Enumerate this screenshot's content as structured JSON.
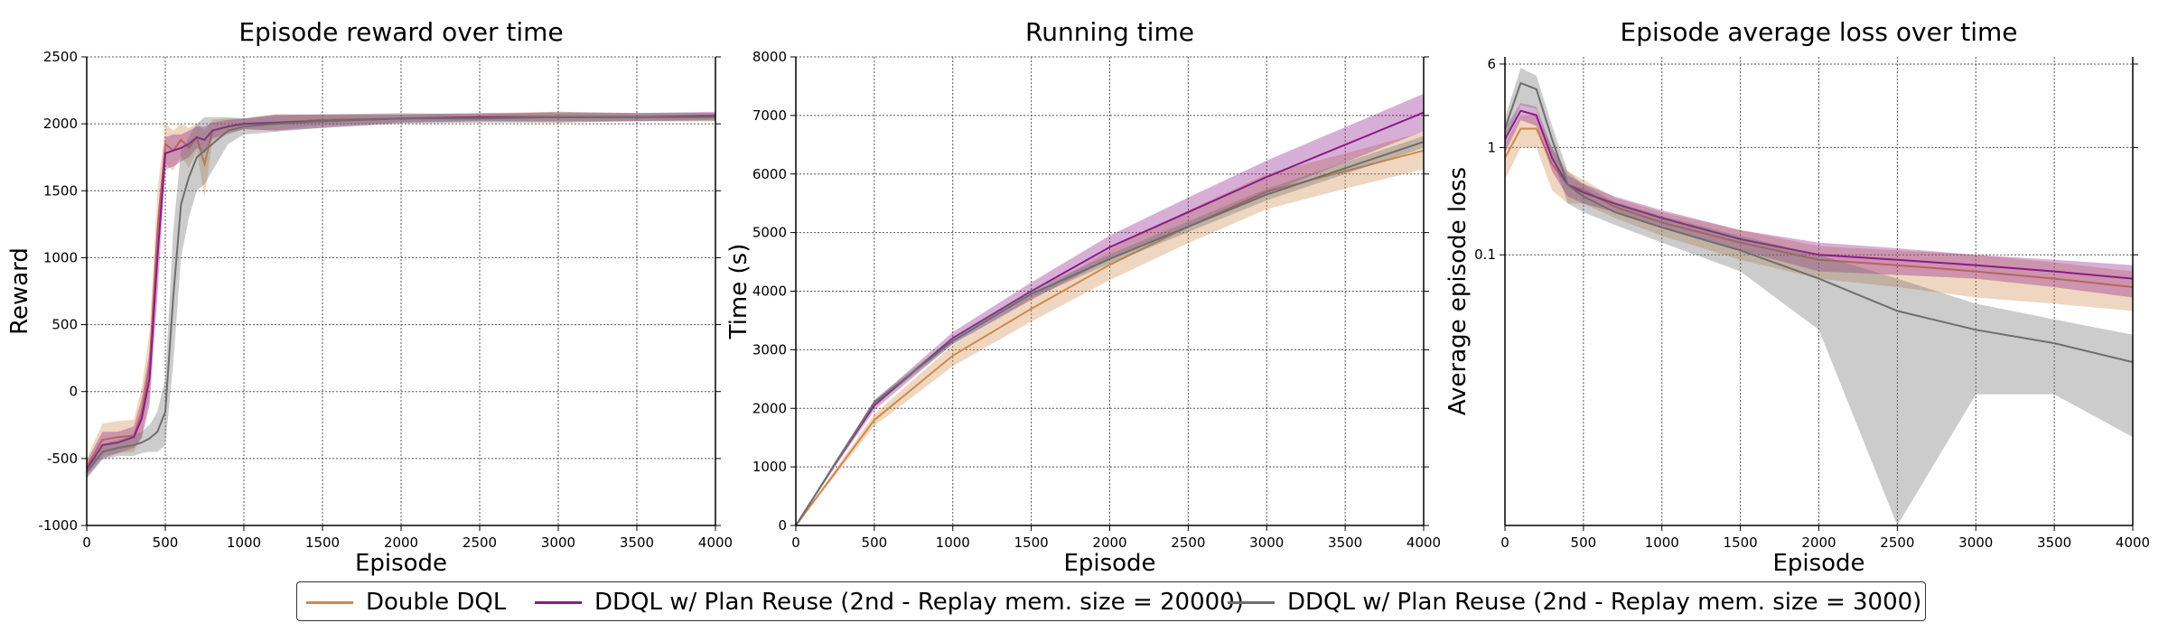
{
  "legend": [
    {
      "label": "Double DQL",
      "color": "#d08a4a"
    },
    {
      "label": "DDQL w/ Plan Reuse (2nd - Replay mem. size = 20000)",
      "color": "#8b1a89"
    },
    {
      "label": "DDQL w/ Plan Reuse (2nd - Replay mem. size = 3000)",
      "color": "#6e6e6e"
    }
  ],
  "chart_data": [
    {
      "type": "line",
      "title": "Episode reward over time",
      "xlabel": "Episode",
      "ylabel": "Reward",
      "xlim": [
        0,
        4000
      ],
      "ylim": [
        -1000,
        2500
      ],
      "xticks": [
        "0",
        "500",
        "1000",
        "1500",
        "2000",
        "2500",
        "3000",
        "3500",
        "4000"
      ],
      "yticks": [
        "-1000",
        "-500",
        "0",
        "500",
        "1000",
        "1500",
        "2000",
        "2500"
      ],
      "grid": true,
      "x": [
        0,
        100,
        200,
        300,
        350,
        400,
        450,
        500,
        550,
        600,
        650,
        700,
        750,
        800,
        900,
        1000,
        1200,
        1500,
        2000,
        2500,
        3000,
        3500,
        4000
      ],
      "series": [
        {
          "name": "Double DQL",
          "color": "#d08a4a",
          "values": [
            -560,
            -360,
            -340,
            -330,
            -150,
            200,
            1200,
            1850,
            1800,
            1880,
            1820,
            1900,
            1700,
            1950,
            1980,
            2000,
            2010,
            2030,
            2040,
            2050,
            2050,
            2050,
            2050
          ],
          "band": [
            60,
            120,
            120,
            120,
            180,
            250,
            300,
            150,
            150,
            120,
            150,
            100,
            250,
            80,
            60,
            40,
            60,
            40,
            30,
            30,
            40,
            30,
            30
          ]
        },
        {
          "name": "DDQL w/ Plan Reuse (2nd - Replay mem. size = 20000)",
          "color": "#8b1a89",
          "values": [
            -580,
            -400,
            -380,
            -340,
            -200,
            100,
            1000,
            1780,
            1800,
            1820,
            1850,
            1900,
            1880,
            1950,
            1980,
            2000,
            2010,
            2020,
            2040,
            2050,
            2050,
            2050,
            2060
          ],
          "band": [
            60,
            100,
            80,
            80,
            150,
            200,
            300,
            120,
            120,
            100,
            100,
            80,
            100,
            60,
            50,
            40,
            60,
            50,
            30,
            30,
            30,
            30,
            30
          ]
        },
        {
          "name": "DDQL w/ Plan Reuse (2nd - Replay mem. size = 3000)",
          "color": "#6e6e6e",
          "values": [
            -600,
            -450,
            -420,
            -400,
            -380,
            -350,
            -300,
            -150,
            700,
            1400,
            1600,
            1750,
            1800,
            1850,
            1950,
            1980,
            2000,
            2020,
            2040,
            2040,
            2050,
            2050,
            2050
          ],
          "band": [
            50,
            60,
            60,
            80,
            80,
            100,
            150,
            250,
            500,
            400,
            300,
            250,
            250,
            200,
            100,
            60,
            60,
            50,
            40,
            30,
            40,
            30,
            30
          ]
        }
      ]
    },
    {
      "type": "line",
      "title": "Running time",
      "xlabel": "Episode",
      "ylabel": "Time (s)",
      "xlim": [
        0,
        4000
      ],
      "ylim": [
        0,
        8000
      ],
      "xticks": [
        "0",
        "500",
        "1000",
        "1500",
        "2000",
        "2500",
        "3000",
        "3500",
        "4000"
      ],
      "yticks": [
        "0",
        "1000",
        "2000",
        "3000",
        "4000",
        "5000",
        "6000",
        "7000",
        "8000"
      ],
      "grid": true,
      "x": [
        0,
        250,
        500,
        1000,
        1500,
        2000,
        2500,
        3000,
        3500,
        4000
      ],
      "series": [
        {
          "name": "Double DQL",
          "color": "#d08a4a",
          "values": [
            0,
            900,
            1800,
            2900,
            3700,
            4450,
            5100,
            5700,
            6050,
            6400
          ],
          "band": [
            0,
            50,
            100,
            180,
            220,
            260,
            280,
            300,
            300,
            320
          ]
        },
        {
          "name": "DDQL w/ Plan Reuse (2nd - Replay mem. size = 20000)",
          "color": "#8b1a89",
          "values": [
            0,
            1050,
            2050,
            3200,
            4000,
            4750,
            5350,
            5950,
            6500,
            7050
          ],
          "band": [
            0,
            50,
            80,
            100,
            150,
            200,
            250,
            280,
            300,
            320
          ]
        },
        {
          "name": "DDQL w/ Plan Reuse (2nd - Replay mem. size = 3000)",
          "color": "#6e6e6e",
          "values": [
            0,
            1050,
            2100,
            3150,
            3950,
            4550,
            5100,
            5650,
            6100,
            6550
          ],
          "band": [
            0,
            30,
            50,
            60,
            70,
            80,
            90,
            100,
            100,
            100
          ]
        }
      ]
    },
    {
      "type": "line",
      "title": "Episode average loss over time",
      "xlabel": "Episode",
      "ylabel": "Average episode loss",
      "xlim": [
        0,
        4000
      ],
      "ylim": [
        0.0003,
        7
      ],
      "yscale": "log",
      "xticks": [
        "0",
        "500",
        "1000",
        "1500",
        "2000",
        "2500",
        "3000",
        "3500",
        "4000"
      ],
      "yticks": [
        "0.1",
        "1",
        "6"
      ],
      "grid": true,
      "x": [
        0,
        100,
        200,
        300,
        400,
        500,
        700,
        1000,
        1500,
        2000,
        2500,
        3000,
        3500,
        4000
      ],
      "series": [
        {
          "name": "Double DQL",
          "color": "#d08a4a",
          "values": [
            0.8,
            1.5,
            1.5,
            0.7,
            0.45,
            0.4,
            0.28,
            0.2,
            0.13,
            0.09,
            0.08,
            0.07,
            0.06,
            0.05
          ],
          "band": [
            0.3,
            0.5,
            0.5,
            0.3,
            0.15,
            0.1,
            0.06,
            0.05,
            0.04,
            0.03,
            0.03,
            0.03,
            0.025,
            0.02
          ]
        },
        {
          "name": "DDQL w/ Plan Reuse (2nd - Replay mem. size = 20000)",
          "color": "#8b1a89",
          "values": [
            1.2,
            2.2,
            2.0,
            0.8,
            0.45,
            0.38,
            0.3,
            0.22,
            0.14,
            0.1,
            0.09,
            0.08,
            0.07,
            0.06
          ],
          "band": [
            0.3,
            0.4,
            0.4,
            0.2,
            0.1,
            0.08,
            0.05,
            0.04,
            0.03,
            0.03,
            0.025,
            0.02,
            0.02,
            0.02
          ]
        },
        {
          "name": "DDQL w/ Plan Reuse (2nd - Replay mem. size = 3000)",
          "color": "#6e6e6e",
          "values": [
            1.5,
            4.0,
            3.5,
            1.2,
            0.45,
            0.35,
            0.25,
            0.18,
            0.11,
            0.06,
            0.03,
            0.02,
            0.015,
            0.01
          ],
          "band": [
            0.4,
            1.5,
            1.2,
            0.4,
            0.15,
            0.1,
            0.06,
            0.05,
            0.04,
            0.04,
            0.03,
            0.015,
            0.01,
            0.008
          ]
        }
      ]
    }
  ]
}
